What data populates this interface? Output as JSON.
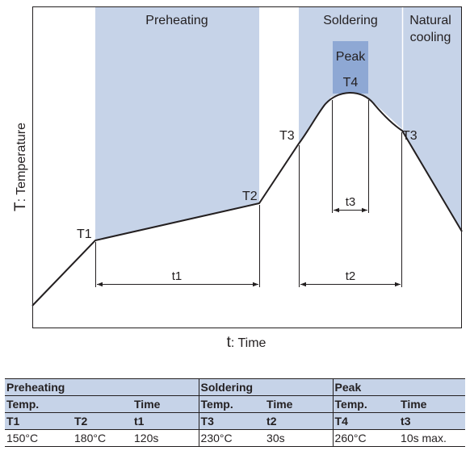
{
  "diagram": {
    "zones": {
      "preheating": "Preheating",
      "soldering": "Soldering",
      "natural_cooling_line1": "Natural",
      "natural_cooling_line2": "cooling",
      "peak": "Peak"
    },
    "points": {
      "t1": "T1",
      "t2": "T2",
      "t3_left": "T3",
      "t3_right": "T3",
      "t4": "T4"
    },
    "durations": {
      "t1": "t1",
      "t2": "t2",
      "t3": "t3"
    },
    "axes": {
      "y_symbol": "T",
      "y_label": ": Temperature",
      "x_symbol": "t",
      "x_label": ": Time"
    },
    "colors": {
      "zone_fill": "#c6d3e8",
      "peak_fill": "#8ea8d4",
      "line": "#231f20"
    }
  },
  "table": {
    "groups": [
      "Preheating",
      "Soldering",
      "Peak"
    ],
    "sub_headers": [
      "Temp.",
      "",
      "Time",
      "Temp.",
      "Time",
      "Temp.",
      "Time"
    ],
    "symbols": [
      "T1",
      "T2",
      "t1",
      "T3",
      "t2",
      "T4",
      "t3"
    ],
    "values": [
      "150°C",
      "180°C",
      "120s",
      "230°C",
      "30s",
      "260°C",
      "10s max."
    ]
  }
}
